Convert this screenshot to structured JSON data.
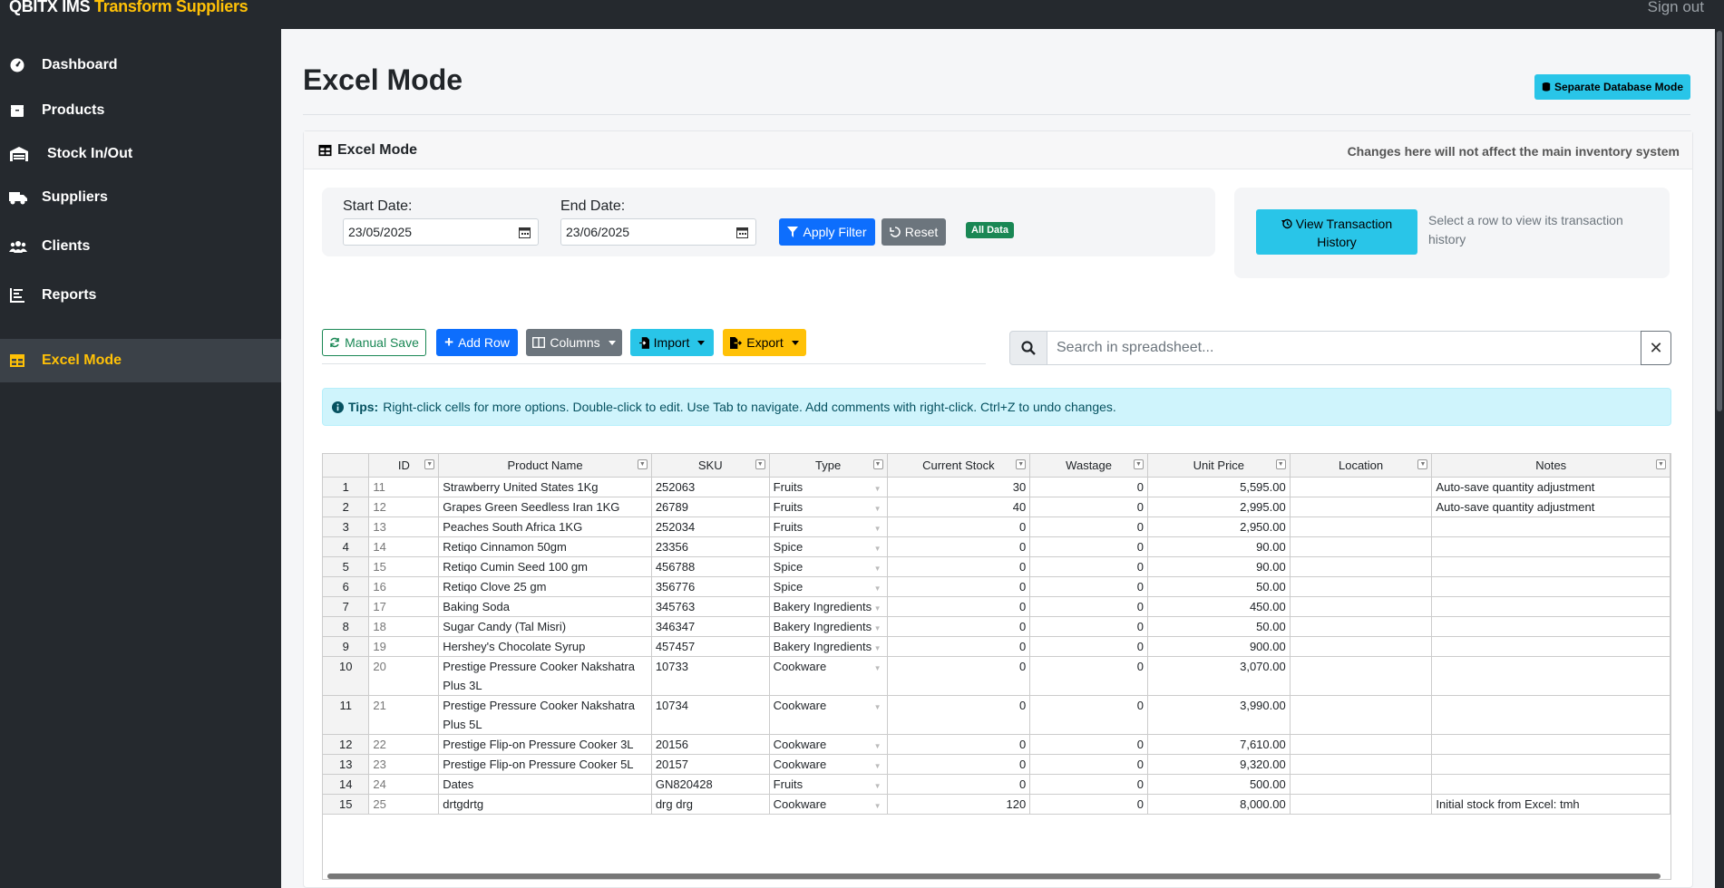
{
  "app": {
    "brand": "QBITX IMS",
    "brand_accent": "Transform Suppliers",
    "signout": "Sign out"
  },
  "sidebar": {
    "items": [
      {
        "label": "Dashboard",
        "icon": "gauge-icon"
      },
      {
        "label": "Products",
        "icon": "box-icon"
      },
      {
        "label": "Stock In/Out",
        "icon": "warehouse-icon"
      },
      {
        "label": "Suppliers",
        "icon": "truck-icon"
      },
      {
        "label": "Clients",
        "icon": "users-icon"
      },
      {
        "label": "Reports",
        "icon": "chart-icon"
      },
      {
        "label": "Excel Mode",
        "icon": "table-icon",
        "active": true
      }
    ]
  },
  "page": {
    "title": "Excel Mode",
    "separate_db_button": "Separate Database Mode"
  },
  "card": {
    "title": "Excel Mode",
    "note": "Changes here will not affect the main inventory system"
  },
  "filter": {
    "start_label": "Start Date:",
    "start_value": "23/05/2025",
    "end_label": "End Date:",
    "end_value": "23/06/2025",
    "apply": "Apply Filter",
    "reset": "Reset",
    "badge": "All Data"
  },
  "history": {
    "button_line1": "View Transaction",
    "button_line2": "History",
    "text": "Select a row to view its transaction history"
  },
  "toolbar": {
    "manual_save": "Manual Save",
    "add_row": "Add Row",
    "columns": "Columns",
    "import": "Import",
    "export": "Export"
  },
  "search": {
    "placeholder": "Search in spreadsheet...",
    "clear": "✕"
  },
  "tips": {
    "label": "Tips:",
    "text": "Right-click cells for more options. Double-click to edit. Use Tab to navigate. Add comments with right-click. Ctrl+Z to undo changes."
  },
  "columns": [
    "ID",
    "Product Name",
    "SKU",
    "Type",
    "Current Stock",
    "Wastage",
    "Unit Price",
    "Location",
    "Notes"
  ],
  "rows": [
    {
      "n": "1",
      "id": "11",
      "name": "Strawberry United States 1Kg",
      "sku": "252063",
      "type": "Fruits",
      "stock": "30",
      "wastage": "0",
      "price": "5,595.00",
      "location": "",
      "notes": "Auto-save quantity adjustment"
    },
    {
      "n": "2",
      "id": "12",
      "name": "Grapes Green Seedless Iran 1KG",
      "sku": "26789",
      "type": "Fruits",
      "stock": "40",
      "wastage": "0",
      "price": "2,995.00",
      "location": "",
      "notes": "Auto-save quantity adjustment"
    },
    {
      "n": "3",
      "id": "13",
      "name": "Peaches South Africa 1KG",
      "sku": "252034",
      "type": "Fruits",
      "stock": "0",
      "wastage": "0",
      "price": "2,950.00",
      "location": "",
      "notes": ""
    },
    {
      "n": "4",
      "id": "14",
      "name": "Retiqo Cinnamon 50gm",
      "sku": "23356",
      "type": "Spice",
      "stock": "0",
      "wastage": "0",
      "price": "90.00",
      "location": "",
      "notes": ""
    },
    {
      "n": "5",
      "id": "15",
      "name": "Retiqo Cumin Seed 100 gm",
      "sku": "456788",
      "type": "Spice",
      "stock": "0",
      "wastage": "0",
      "price": "90.00",
      "location": "",
      "notes": ""
    },
    {
      "n": "6",
      "id": "16",
      "name": "Retiqo Clove 25 gm",
      "sku": "356776",
      "type": "Spice",
      "stock": "0",
      "wastage": "0",
      "price": "50.00",
      "location": "",
      "notes": ""
    },
    {
      "n": "7",
      "id": "17",
      "name": "Baking Soda",
      "sku": "345763",
      "type": "Bakery Ingredients",
      "stock": "0",
      "wastage": "0",
      "price": "450.00",
      "location": "",
      "notes": ""
    },
    {
      "n": "8",
      "id": "18",
      "name": "Sugar Candy (Tal Misri)",
      "sku": "346347",
      "type": "Bakery Ingredients",
      "stock": "0",
      "wastage": "0",
      "price": "50.00",
      "location": "",
      "notes": ""
    },
    {
      "n": "9",
      "id": "19",
      "name": "Hershey's Chocolate Syrup",
      "sku": "457457",
      "type": "Bakery Ingredients",
      "stock": "0",
      "wastage": "0",
      "price": "900.00",
      "location": "",
      "notes": ""
    },
    {
      "n": "10",
      "id": "20",
      "name": "Prestige Pressure Cooker Nakshatra Plus 3L",
      "sku": "10733",
      "type": "Cookware",
      "stock": "0",
      "wastage": "0",
      "price": "3,070.00",
      "location": "",
      "notes": ""
    },
    {
      "n": "11",
      "id": "21",
      "name": "Prestige Pressure Cooker Nakshatra Plus 5L",
      "sku": "10734",
      "type": "Cookware",
      "stock": "0",
      "wastage": "0",
      "price": "3,990.00",
      "location": "",
      "notes": ""
    },
    {
      "n": "12",
      "id": "22",
      "name": "Prestige Flip-on Pressure Cooker 3L",
      "sku": "20156",
      "type": "Cookware",
      "stock": "0",
      "wastage": "0",
      "price": "7,610.00",
      "location": "",
      "notes": ""
    },
    {
      "n": "13",
      "id": "23",
      "name": "Prestige Flip-on Pressure Cooker 5L",
      "sku": "20157",
      "type": "Cookware",
      "stock": "0",
      "wastage": "0",
      "price": "9,320.00",
      "location": "",
      "notes": ""
    },
    {
      "n": "14",
      "id": "24",
      "name": "Dates",
      "sku": "GN820428",
      "type": "Fruits",
      "stock": "0",
      "wastage": "0",
      "price": "500.00",
      "location": "",
      "notes": ""
    },
    {
      "n": "15",
      "id": "25",
      "name": "drtgdrtg",
      "sku": "drg drg",
      "type": "Cookware",
      "stock": "120",
      "wastage": "0",
      "price": "8,000.00",
      "location": "",
      "notes": "Initial stock from Excel: tmh"
    }
  ]
}
